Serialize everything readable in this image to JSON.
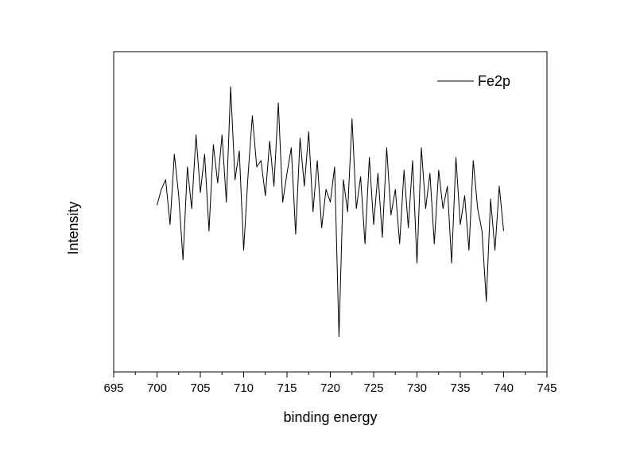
{
  "chart_data": {
    "type": "line",
    "title": "",
    "xlabel": "binding energy",
    "ylabel": "Intensity",
    "xlim": [
      695,
      745
    ],
    "ylim": [
      0,
      100
    ],
    "x_ticks": [
      695,
      700,
      705,
      710,
      715,
      720,
      725,
      730,
      735,
      740,
      745
    ],
    "x_minor_step": 2.5,
    "y_ticks_shown": false,
    "grid": false,
    "legend_position": "top-right",
    "colors": {
      "line": "#000000",
      "axis": "#000000"
    },
    "series": [
      {
        "name": "Fe2p",
        "x": [
          700.0,
          700.5,
          701.0,
          701.5,
          702.0,
          702.5,
          703.0,
          703.5,
          704.0,
          704.5,
          705.0,
          705.5,
          706.0,
          706.5,
          707.0,
          707.5,
          708.0,
          708.5,
          709.0,
          709.5,
          710.0,
          710.5,
          711.0,
          711.5,
          712.0,
          712.5,
          713.0,
          713.5,
          714.0,
          714.5,
          715.0,
          715.5,
          716.0,
          716.5,
          717.0,
          717.5,
          718.0,
          718.5,
          719.0,
          719.5,
          720.0,
          720.5,
          721.0,
          721.5,
          722.0,
          722.5,
          723.0,
          723.5,
          724.0,
          724.5,
          725.0,
          725.5,
          726.0,
          726.5,
          727.0,
          727.5,
          728.0,
          728.5,
          729.0,
          729.5,
          730.0,
          730.5,
          731.0,
          731.5,
          732.0,
          732.5,
          733.0,
          733.5,
          734.0,
          734.5,
          735.0,
          735.5,
          736.0,
          736.5,
          737.0,
          737.5,
          738.0,
          738.5,
          739.0,
          739.5,
          740.0
        ],
        "y": [
          52,
          57,
          60,
          46,
          68,
          55,
          35,
          64,
          51,
          74,
          56,
          68,
          44,
          71,
          59,
          74,
          53,
          89,
          60,
          69,
          38,
          61,
          80,
          64,
          66,
          55,
          72,
          58,
          84,
          53,
          62,
          70,
          43,
          73,
          58,
          75,
          50,
          66,
          45,
          57,
          53,
          64,
          11,
          60,
          50,
          79,
          51,
          61,
          40,
          67,
          46,
          62,
          42,
          70,
          49,
          57,
          40,
          63,
          45,
          66,
          34,
          70,
          51,
          62,
          40,
          63,
          51,
          58,
          34,
          67,
          46,
          55,
          38,
          66,
          51,
          44,
          22,
          54,
          38,
          58,
          44
        ]
      }
    ]
  }
}
